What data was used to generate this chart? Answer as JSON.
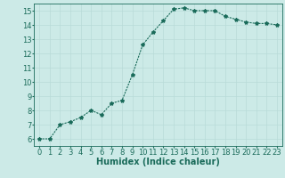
{
  "x": [
    0,
    1,
    2,
    3,
    4,
    5,
    6,
    7,
    8,
    9,
    10,
    11,
    12,
    13,
    14,
    15,
    16,
    17,
    18,
    19,
    20,
    21,
    22,
    23
  ],
  "y": [
    6.0,
    6.0,
    7.0,
    7.2,
    7.5,
    8.0,
    7.7,
    8.5,
    8.7,
    10.5,
    12.6,
    13.5,
    14.3,
    15.1,
    15.2,
    15.0,
    15.0,
    15.0,
    14.6,
    14.4,
    14.2,
    14.1,
    14.1,
    14.0
  ],
  "line_color": "#1a6b5a",
  "marker": "*",
  "marker_color": "#1a6b5a",
  "bg_color": "#cceae7",
  "grid_color": "#b8dbd8",
  "xlabel": "Humidex (Indice chaleur)",
  "xlabel_fontsize": 7,
  "tick_fontsize": 6,
  "ylim": [
    5.5,
    15.5
  ],
  "xlim": [
    -0.5,
    23.5
  ],
  "yticks": [
    6,
    7,
    8,
    9,
    10,
    11,
    12,
    13,
    14,
    15
  ],
  "xticks": [
    0,
    1,
    2,
    3,
    4,
    5,
    6,
    7,
    8,
    9,
    10,
    11,
    12,
    13,
    14,
    15,
    16,
    17,
    18,
    19,
    20,
    21,
    22,
    23
  ]
}
